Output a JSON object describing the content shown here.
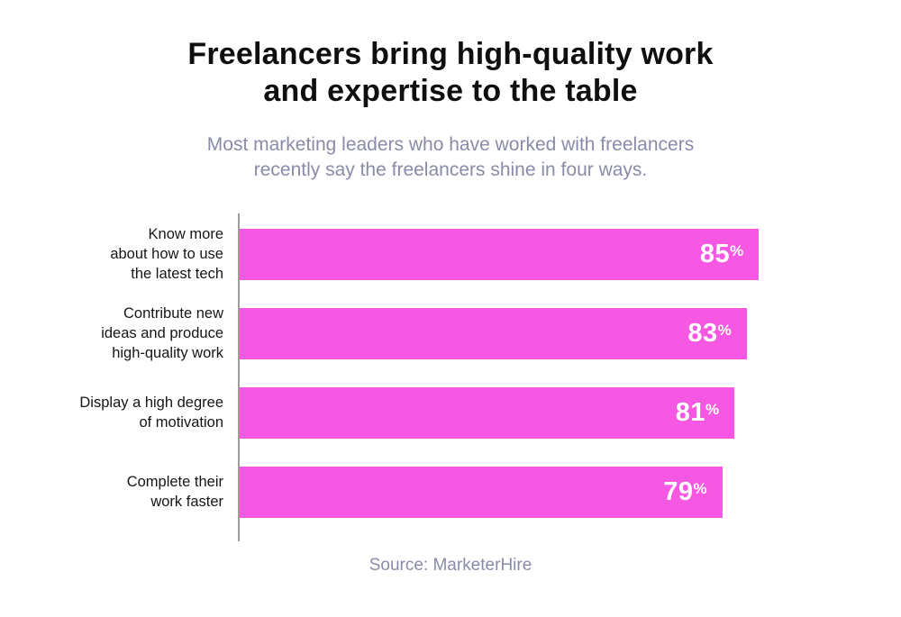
{
  "title": "Freelancers bring high-quality work\nand expertise to the table",
  "subtitle": "Most marketing leaders who have worked with freelancers\nrecently say the freelancers shine in four ways.",
  "source": "Source: MarketerHire",
  "chart_data": {
    "type": "bar",
    "orientation": "horizontal",
    "title": "Freelancers bring high-quality work and expertise to the table",
    "subtitle": "Most marketing leaders who have worked with freelancers recently say the freelancers shine in four ways.",
    "categories": [
      "Know more\nabout how to use\nthe latest tech",
      "Contribute new\nideas and produce\nhigh-quality work",
      "Display a high degree\nof motivation",
      "Complete their\nwork faster"
    ],
    "values": [
      85,
      83,
      81,
      79
    ],
    "value_suffix": "%",
    "xlim": [
      0,
      100
    ],
    "grid": false,
    "legend": false,
    "bar_color": "#F657E3",
    "value_label_color": "#ffffff",
    "axis_color": "#9c9c9c",
    "source": "Source: MarketerHire"
  }
}
